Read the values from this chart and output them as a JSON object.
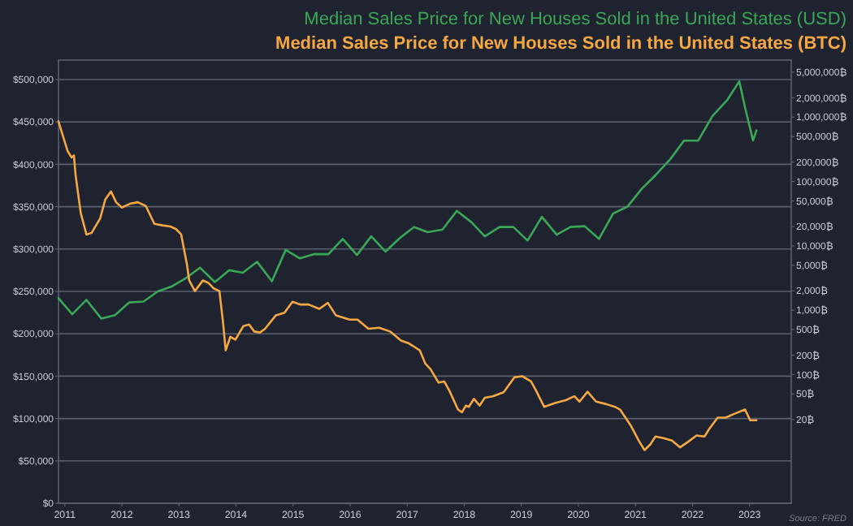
{
  "chart_data": {
    "type": "line",
    "title": "Median Sales Price for New Houses Sold in the United States (USD)",
    "subtitle": "Median Sales Price for New Houses Sold in the United States (BTC)",
    "annotations": [
      "Source: FRED"
    ],
    "xlim": [
      2010.89,
      2023.73
    ],
    "xticks": [
      2011,
      2012,
      2013,
      2014,
      2015,
      2016,
      2017,
      2018,
      2019,
      2020,
      2021,
      2022,
      2023
    ],
    "ylim": [
      0,
      523000
    ],
    "yticks": [
      {
        "value": 0,
        "label": "$0"
      },
      {
        "value": 50000,
        "label": "$50,000"
      },
      {
        "value": 100000,
        "label": "$100,000"
      },
      {
        "value": 150000,
        "label": "$150,000"
      },
      {
        "value": 200000,
        "label": "$200,000"
      },
      {
        "value": 250000,
        "label": "$250,000"
      },
      {
        "value": 300000,
        "label": "$300,000"
      },
      {
        "value": 350000,
        "label": "$350,000"
      },
      {
        "value": 400000,
        "label": "$400,000"
      },
      {
        "value": 450000,
        "label": "$450,000"
      },
      {
        "value": 500000,
        "label": "$500,000"
      }
    ],
    "y2lim": [
      1,
      7700000
    ],
    "y2ticks": [
      {
        "value": 20,
        "label": "20₿"
      },
      {
        "value": 50,
        "label": "50₿"
      },
      {
        "value": 100,
        "label": "100₿"
      },
      {
        "value": 200,
        "label": "200₿"
      },
      {
        "value": 500,
        "label": "500₿"
      },
      {
        "value": 1000,
        "label": "1,000₿"
      },
      {
        "value": 2000,
        "label": "2,000₿"
      },
      {
        "value": 5000,
        "label": "5,000₿"
      },
      {
        "value": 10000,
        "label": "10,000₿"
      },
      {
        "value": 20000,
        "label": "20,000₿"
      },
      {
        "value": 50000,
        "label": "50,000₿"
      },
      {
        "value": 100000,
        "label": "100,000₿"
      },
      {
        "value": 200000,
        "label": "200,000₿"
      },
      {
        "value": 500000,
        "label": "500,000₿"
      },
      {
        "value": 1000000,
        "label": "1,000,000₿"
      },
      {
        "value": 2000000,
        "label": "2,000,000₿"
      },
      {
        "value": 5000000,
        "label": "5,000,000₿"
      }
    ],
    "log": "y2",
    "grid": "y",
    "series": [
      {
        "color": "#3aa757",
        "x": [
          2010.89,
          2011.13,
          2011.38,
          2011.64,
          2011.88,
          2012.13,
          2012.38,
          2012.63,
          2012.88,
          2013.13,
          2013.37,
          2013.63,
          2013.88,
          2014.12,
          2014.37,
          2014.63,
          2014.87,
          2015.12,
          2015.37,
          2015.62,
          2015.87,
          2016.12,
          2016.37,
          2016.62,
          2016.87,
          2017.12,
          2017.36,
          2017.62,
          2017.87,
          2018.12,
          2018.36,
          2018.62,
          2018.86,
          2019.11,
          2019.36,
          2019.62,
          2019.86,
          2020.11,
          2020.36,
          2020.61,
          2020.86,
          2021.11,
          2021.35,
          2021.61,
          2021.85,
          2022.1,
          2022.35,
          2022.61,
          2022.82,
          2022.92,
          2023.06,
          2023.12
        ],
        "values": [
          242000,
          223000,
          240000,
          218000,
          222000,
          237000,
          238000,
          250000,
          256000,
          266000,
          278000,
          261000,
          275000,
          272000,
          285000,
          262000,
          299000,
          289000,
          294000,
          294000,
          312000,
          293000,
          315000,
          297000,
          313000,
          326000,
          320000,
          323000,
          345000,
          332000,
          315000,
          326000,
          326000,
          310000,
          338000,
          317000,
          326000,
          327000,
          312000,
          342000,
          350000,
          371000,
          387000,
          406000,
          428000,
          428000,
          457000,
          476000,
          498000,
          467000,
          428000,
          440000
        ]
      },
      {
        "color": "#f5a742",
        "axis": "y2",
        "x": [
          2010.89,
          2011.05,
          2011.12,
          2011.16,
          2011.19,
          2011.28,
          2011.38,
          2011.47,
          2011.62,
          2011.71,
          2011.81,
          2011.9,
          2012.0,
          2012.14,
          2012.28,
          2012.42,
          2012.57,
          2012.71,
          2012.85,
          2012.95,
          2013.04,
          2013.14,
          2013.18,
          2013.28,
          2013.42,
          2013.52,
          2013.61,
          2013.71,
          2013.77,
          2013.82,
          2013.9,
          2013.99,
          2014.13,
          2014.23,
          2014.32,
          2014.42,
          2014.51,
          2014.7,
          2014.85,
          2014.99,
          2015.13,
          2015.27,
          2015.46,
          2015.61,
          2015.75,
          2015.99,
          2016.13,
          2016.32,
          2016.51,
          2016.7,
          2016.89,
          2017.03,
          2017.22,
          2017.32,
          2017.41,
          2017.55,
          2017.65,
          2017.74,
          2017.89,
          2017.96,
          2018.03,
          2018.08,
          2018.17,
          2018.27,
          2018.36,
          2018.5,
          2018.69,
          2018.88,
          2019.02,
          2019.17,
          2019.26,
          2019.4,
          2019.59,
          2019.78,
          2019.93,
          2020.02,
          2020.16,
          2020.31,
          2020.49,
          2020.64,
          2020.73,
          2020.92,
          2021.07,
          2021.16,
          2021.26,
          2021.35,
          2021.49,
          2021.64,
          2021.78,
          2021.92,
          2022.07,
          2022.21,
          2022.3,
          2022.44,
          2022.58,
          2022.73,
          2022.92,
          2023.01,
          2023.12
        ],
        "values": [
          857000,
          297000,
          236000,
          255000,
          125000,
          32400,
          15000,
          15900,
          26700,
          52500,
          70000,
          47600,
          39300,
          45000,
          47600,
          41600,
          22000,
          20800,
          20000,
          18200,
          15000,
          5200,
          2900,
          1980,
          2900,
          2650,
          2180,
          1980,
          687,
          238,
          385,
          350,
          566,
          600,
          467,
          450,
          514,
          834,
          916,
          1350,
          1225,
          1225,
          1050,
          1300,
          834,
          715,
          715,
          514,
          535,
          467,
          337,
          305,
          238,
          147,
          121,
          75,
          78,
          56,
          28.6,
          26,
          33,
          31.5,
          42,
          33,
          43.6,
          46,
          53,
          91,
          94,
          78,
          56,
          31.5,
          36,
          40,
          46,
          38,
          54,
          38,
          34.7,
          31.5,
          28.6,
          16,
          9.0,
          6.7,
          8.2,
          10.9,
          10.3,
          9.4,
          7.4,
          9.0,
          11.3,
          10.9,
          14.6,
          21.4,
          21.4,
          24.5,
          28.6,
          19.5,
          19.5
        ]
      }
    ]
  }
}
